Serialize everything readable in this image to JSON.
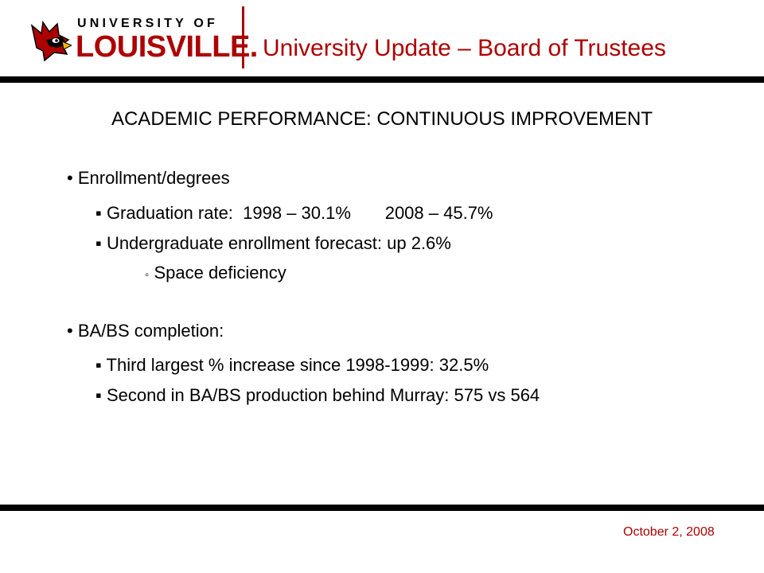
{
  "header": {
    "logo": {
      "line1": "UNIVERSITY OF",
      "line2": "LOUISVILLE.",
      "icon": "cardinal-head-icon"
    },
    "title": "University Update – Board of Trustees"
  },
  "slide": {
    "heading": "ACADEMIC PERFORMANCE:  CONTINUOUS IMPROVEMENT",
    "bullets": {
      "enrollment": {
        "label": "Enrollment/degrees",
        "graduation_rate": "Graduation rate:  1998 – 30.1%       2008 – 45.7%",
        "enrollment_forecast": "Undergraduate enrollment forecast:  up 2.6%",
        "space_deficiency": "Space deficiency"
      },
      "completion": {
        "label": "BA/BS completion:",
        "third_largest": "Third largest % increase since 1998-1999:  32.5%",
        "second_production": "Second in BA/BS production behind Murray:  575 vs 564"
      }
    },
    "markers": {
      "level1": "•",
      "level2": "▪",
      "level3": "◦"
    }
  },
  "footer": {
    "date": "October 2, 2008"
  },
  "colors": {
    "accent": "#ad0000",
    "text": "#000000",
    "rule": "#000000",
    "background": "#ffffff"
  }
}
